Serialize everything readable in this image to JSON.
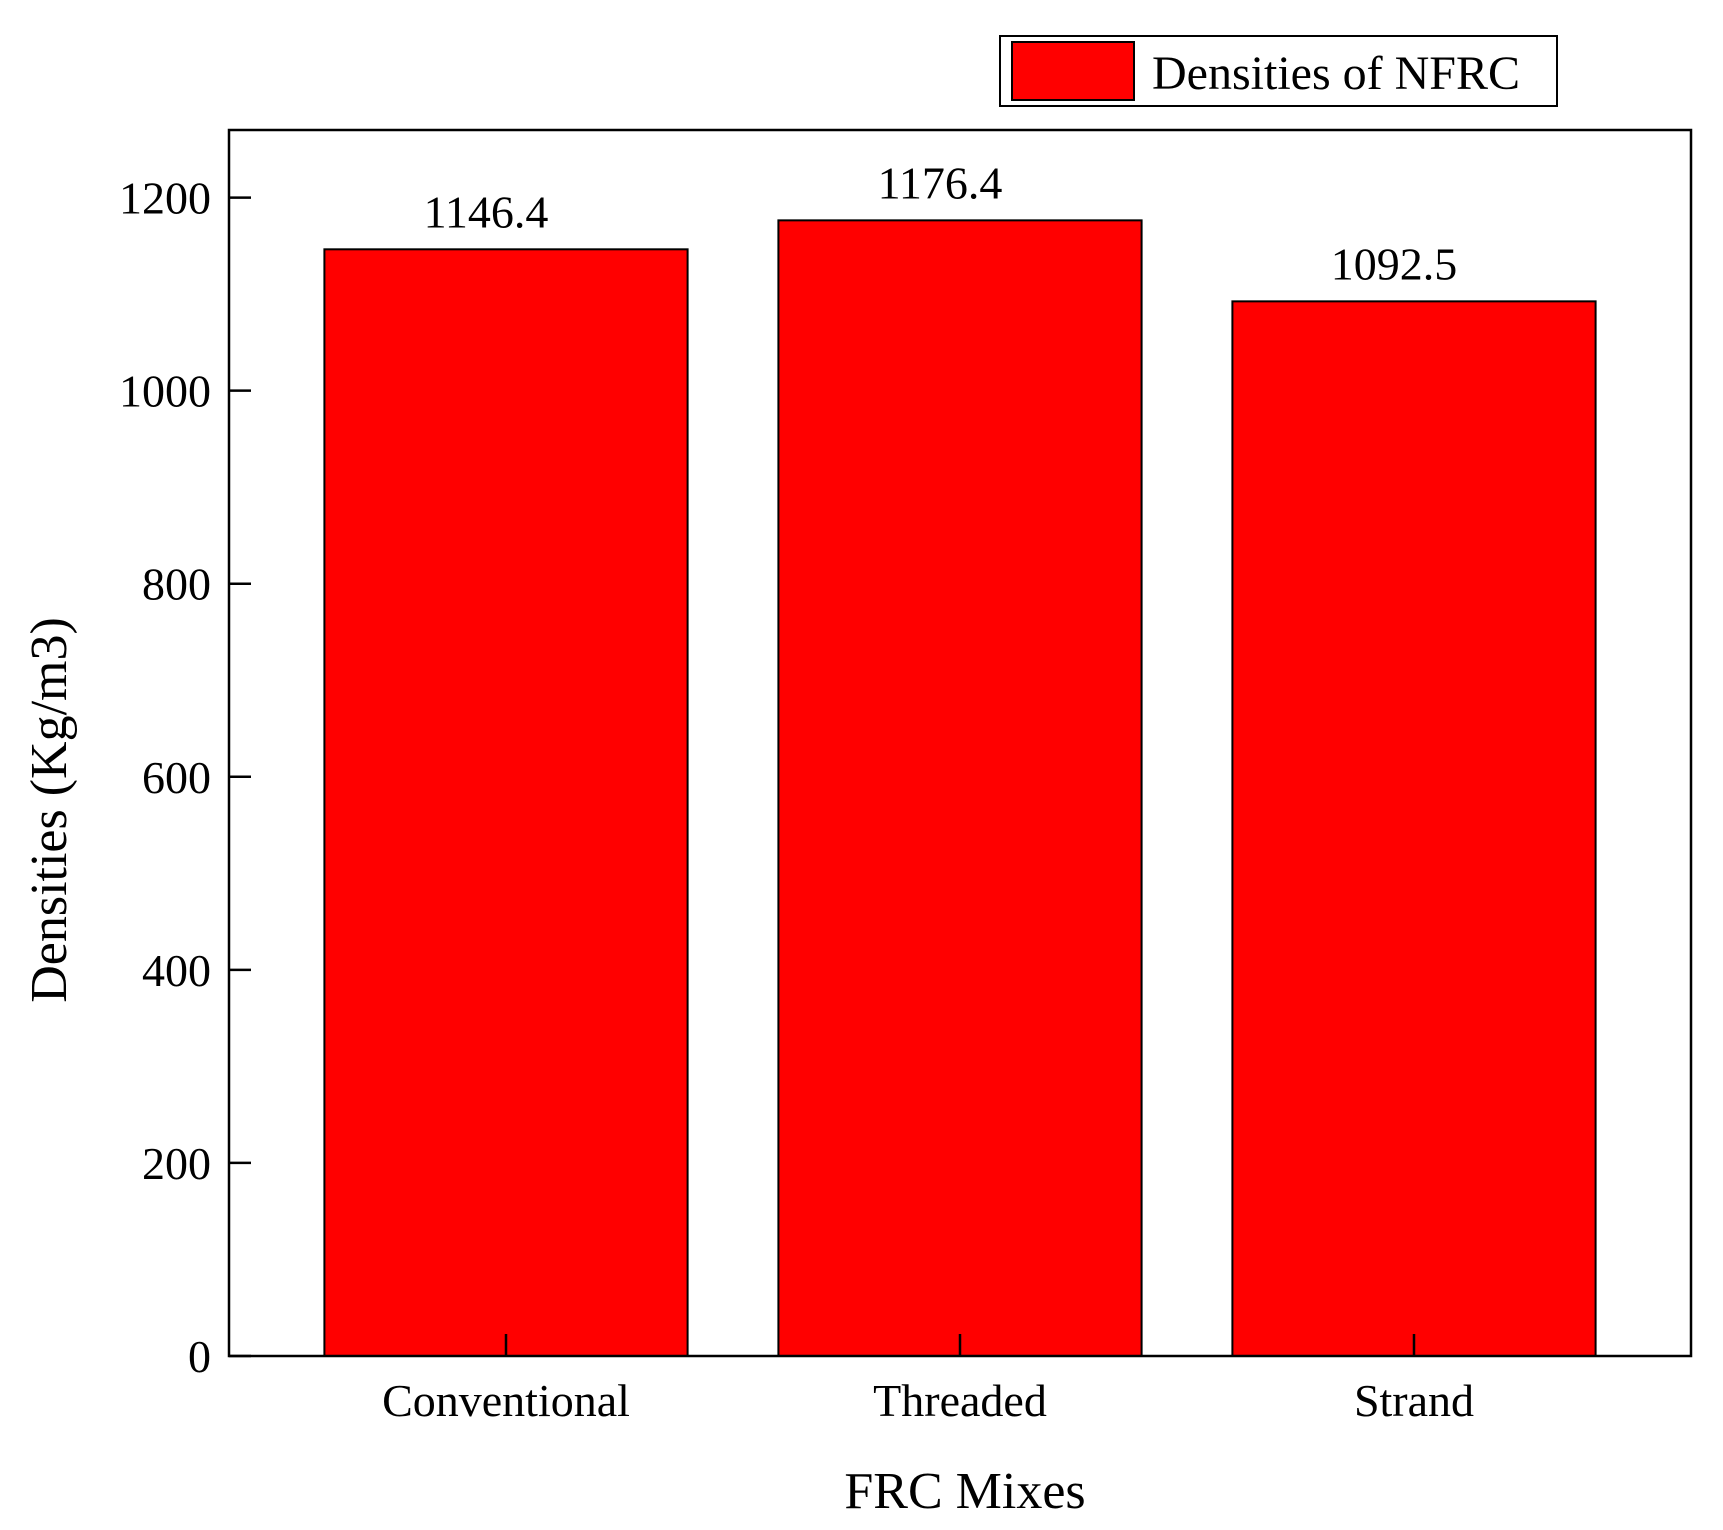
{
  "chart_data": {
    "type": "bar",
    "categories": [
      "Conventional",
      "Threaded",
      "Strand"
    ],
    "values": [
      1146.4,
      1176.4,
      1092.5
    ],
    "value_labels": [
      "1146.4",
      "1176.4",
      "1092.5"
    ],
    "series": [
      {
        "name": "Densities of NFRC",
        "values": [
          1146.4,
          1176.4,
          1092.5
        ],
        "color": "#ff0000"
      }
    ],
    "title": "",
    "xlabel": "FRC Mixes",
    "ylabel": "Densities (Kg/m3)",
    "ylim": [
      0,
      1270
    ],
    "yticks": [
      0,
      200,
      400,
      600,
      800,
      1000,
      1200
    ],
    "ytick_labels": [
      "0",
      "200",
      "400",
      "600",
      "800",
      "1000",
      "1200"
    ],
    "grid": false,
    "legend_position": "top-right",
    "colors": {
      "bar_fill": "#ff0000",
      "bar_stroke": "#000000"
    }
  }
}
